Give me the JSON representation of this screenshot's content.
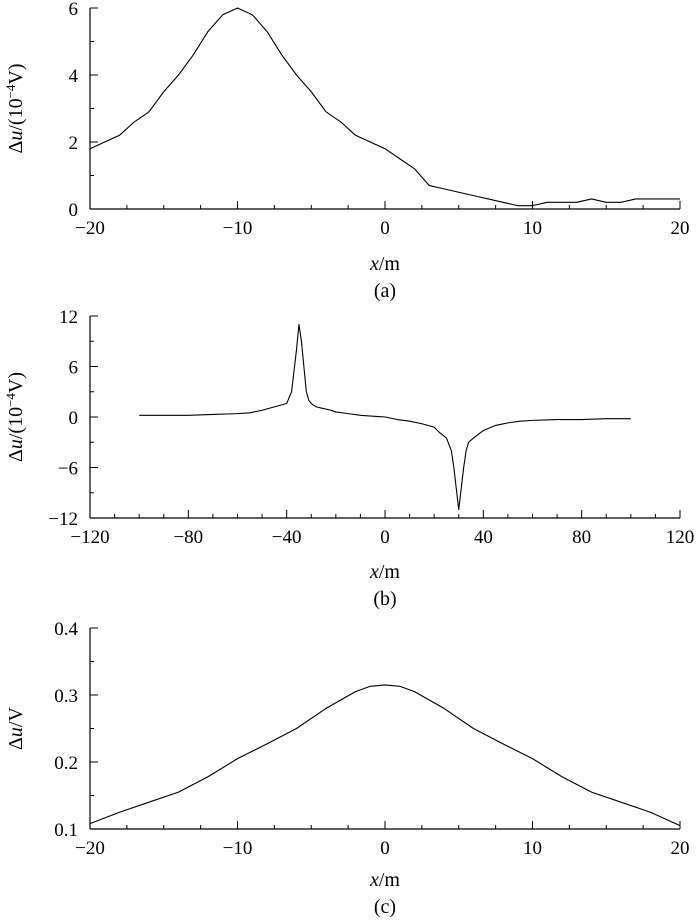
{
  "chart_data": [
    {
      "type": "line",
      "panel_label": "(a)",
      "xlabel": {
        "var": "x",
        "unit": "/m"
      },
      "ylabel": {
        "prefix": "Δ",
        "var": "u",
        "unit_pre": "/(10",
        "exp": "−4",
        "unit_post": "V)"
      },
      "xlim": [
        -20,
        20
      ],
      "ylim": [
        0,
        6
      ],
      "xticks": [
        -20,
        -10,
        0,
        10,
        20
      ],
      "xtick_labels": [
        "−20",
        "−10",
        "0",
        "10",
        "20"
      ],
      "yticks": [
        0,
        2,
        4,
        6
      ],
      "ytick_labels": [
        "0",
        "2",
        "4",
        "6"
      ],
      "x": [
        -20,
        -18,
        -17,
        -16,
        -15,
        -14,
        -13,
        -12,
        -11,
        -10,
        -9,
        -8,
        -7,
        -6,
        -5,
        -4,
        -3,
        -2,
        0,
        1,
        2,
        3,
        4,
        5,
        6,
        7,
        8,
        9,
        10,
        11,
        12,
        13,
        14,
        15,
        16,
        17,
        18,
        19,
        20
      ],
      "y": [
        1.8,
        2.2,
        2.6,
        2.9,
        3.5,
        4.0,
        4.6,
        5.3,
        5.8,
        6.0,
        5.8,
        5.3,
        4.6,
        4.0,
        3.5,
        2.9,
        2.6,
        2.2,
        1.8,
        1.5,
        1.2,
        0.7,
        0.6,
        0.5,
        0.4,
        0.3,
        0.2,
        0.1,
        0.1,
        0.2,
        0.2,
        0.2,
        0.3,
        0.2,
        0.2,
        0.3,
        0.3,
        0.3,
        0.3
      ]
    },
    {
      "type": "line",
      "panel_label": "(b)",
      "xlabel": {
        "var": "x",
        "unit": "/m"
      },
      "ylabel": {
        "prefix": "Δ",
        "var": "u",
        "unit_pre": "/(10",
        "exp": "−4",
        "unit_post": "V)"
      },
      "xlim": [
        -120,
        120
      ],
      "ylim": [
        -12,
        12
      ],
      "xticks": [
        -120,
        -80,
        -40,
        0,
        40,
        80,
        120
      ],
      "xtick_labels": [
        "−120",
        "−80",
        "−40",
        "0",
        "40",
        "80",
        "120"
      ],
      "yticks": [
        -12,
        -6,
        0,
        6,
        12
      ],
      "ytick_labels": [
        "−12",
        "−6",
        "0",
        "6",
        "12"
      ],
      "x": [
        -100,
        -90,
        -80,
        -70,
        -60,
        -55,
        -50,
        -45,
        -40,
        -38,
        -36,
        -35,
        -34,
        -33,
        -32,
        -31,
        -30,
        -28,
        -25,
        -22,
        -20,
        -15,
        -10,
        -5,
        0,
        5,
        10,
        15,
        20,
        22,
        25,
        27,
        28,
        29,
        30,
        31,
        32,
        33,
        34,
        36,
        40,
        45,
        50,
        55,
        60,
        70,
        80,
        90,
        100
      ],
      "y": [
        0.2,
        0.2,
        0.2,
        0.3,
        0.4,
        0.5,
        0.8,
        1.2,
        1.6,
        3.0,
        8.0,
        11.0,
        9.0,
        6.0,
        3.0,
        2.0,
        1.6,
        1.2,
        1.0,
        0.8,
        0.6,
        0.4,
        0.2,
        0.1,
        0.0,
        -0.3,
        -0.5,
        -0.8,
        -1.2,
        -1.8,
        -2.5,
        -4.0,
        -6.0,
        -8.5,
        -11.0,
        -8.5,
        -6.0,
        -4.0,
        -3.0,
        -2.5,
        -1.6,
        -1.0,
        -0.7,
        -0.5,
        -0.4,
        -0.3,
        -0.3,
        -0.2,
        -0.2
      ]
    },
    {
      "type": "line",
      "panel_label": "(c)",
      "xlabel": {
        "var": "x",
        "unit": "/m"
      },
      "ylabel": {
        "prefix": "Δ",
        "var": "u",
        "unit_pre": "/V",
        "exp": "",
        "unit_post": ""
      },
      "xlim": [
        -20,
        20
      ],
      "ylim": [
        0.1,
        0.4
      ],
      "xticks": [
        -20,
        -10,
        0,
        10,
        20
      ],
      "xtick_labels": [
        "−20",
        "−10",
        "0",
        "10",
        "20"
      ],
      "yticks": [
        0.1,
        0.2,
        0.3,
        0.4
      ],
      "ytick_labels": [
        "0.1",
        "0.2",
        "0.3",
        "0.4"
      ],
      "x": [
        -20,
        -18,
        -16,
        -14,
        -12,
        -10,
        -8,
        -6,
        -4,
        -2,
        -1,
        0,
        1,
        2,
        4,
        6,
        8,
        10,
        12,
        14,
        16,
        18,
        20
      ],
      "y": [
        0.108,
        0.125,
        0.14,
        0.155,
        0.178,
        0.205,
        0.227,
        0.25,
        0.28,
        0.305,
        0.313,
        0.315,
        0.313,
        0.305,
        0.28,
        0.25,
        0.227,
        0.205,
        0.178,
        0.155,
        0.14,
        0.125,
        0.105
      ]
    }
  ]
}
